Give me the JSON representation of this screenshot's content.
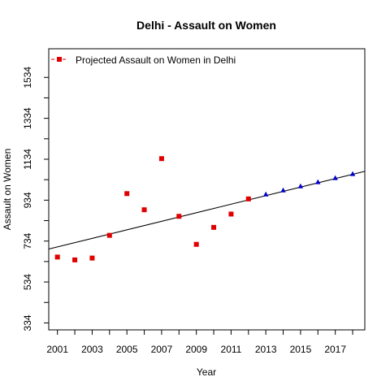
{
  "chart_data": {
    "type": "scatter",
    "title": "Delhi  -  Assault on Women",
    "xlabel": "Year",
    "ylabel": "Assault on Women",
    "xlim": [
      2000.5,
      2018.7
    ],
    "ylim": [
      300,
      1674
    ],
    "x_ticks": [
      2001,
      2003,
      2005,
      2007,
      2009,
      2011,
      2013,
      2015,
      2017
    ],
    "y_ticks": [
      334,
      534,
      734,
      934,
      1134,
      1334,
      1534
    ],
    "legend": {
      "position": "top-left",
      "entries": [
        "Projected  Assault on Women  in  Delhi"
      ]
    },
    "colors": {
      "observed": "#e00000",
      "projected": "#0000cc",
      "trend": "#000000"
    },
    "series": [
      {
        "marker": "square",
        "x": [
          2001,
          2002,
          2003,
          2004,
          2005,
          2006,
          2007,
          2008,
          2009,
          2010,
          2011,
          2012
        ],
        "y": [
          656,
          642,
          651,
          762,
          966,
          887,
          1137,
          855,
          718,
          801,
          866,
          940
        ]
      },
      {
        "marker": "triangle",
        "x": [
          2013,
          2014,
          2015,
          2016,
          2017,
          2018
        ],
        "y": [
          962,
          982,
          1002,
          1022,
          1042,
          1062
        ]
      }
    ],
    "trend_line": {
      "x": [
        2000.5,
        2018.7
      ],
      "y": [
        695,
        1075
      ]
    }
  }
}
